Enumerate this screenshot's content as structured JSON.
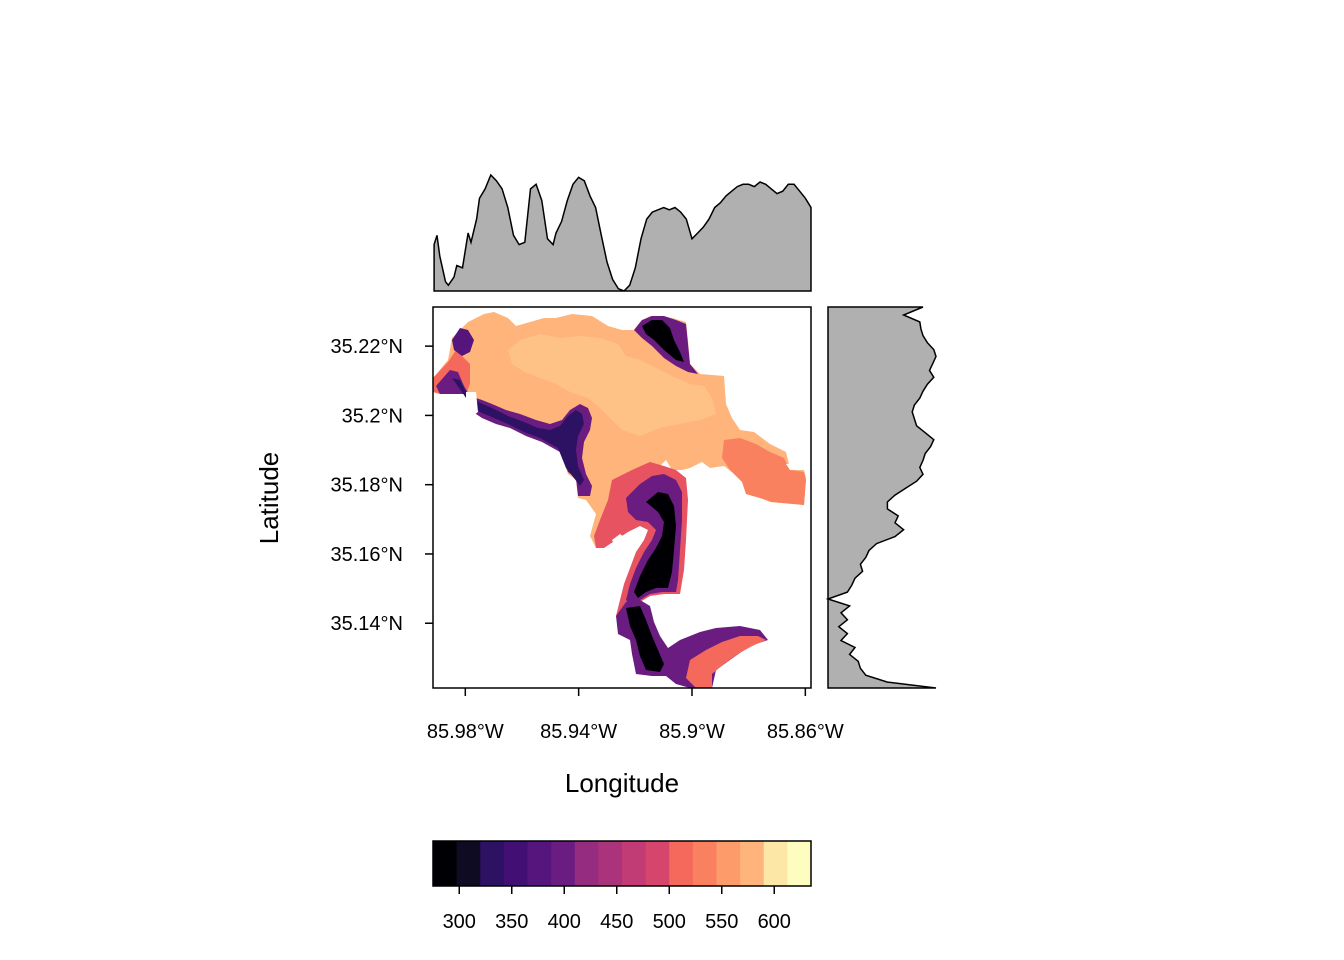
{
  "chart_data": {
    "type": "heatmap",
    "title": "",
    "xlabel": "Longitude",
    "ylabel": "Latitude",
    "x_ticks": [
      "85.98°W",
      "85.94°W",
      "85.9°W",
      "85.86°W"
    ],
    "y_ticks": [
      "35.22°N",
      "35.2°N",
      "35.18°N",
      "35.16°N",
      "35.14°N"
    ],
    "x_tick_values": [
      -85.98,
      -85.94,
      -85.9,
      -85.86
    ],
    "y_tick_values": [
      35.22,
      35.2,
      35.18,
      35.16,
      35.14
    ],
    "xlim": [
      -85.9914,
      -85.858
    ],
    "ylim": [
      35.1213,
      35.2313
    ],
    "colorbar": {
      "ticks": [
        "300",
        "350",
        "400",
        "450",
        "500",
        "550",
        "600"
      ],
      "tick_values": [
        300,
        350,
        400,
        450,
        500,
        550,
        600
      ],
      "range": [
        275,
        635
      ],
      "colors": [
        "#000004",
        "#0f0b22",
        "#1c1044",
        "#2d1163",
        "#420f75",
        "#56147d",
        "#6a1c81",
        "#7f2482",
        "#952c80",
        "#ab337c",
        "#c13b75",
        "#d6456c",
        "#e85362",
        "#f4695c",
        "#fa815f",
        "#fd9b6b",
        "#feb47b",
        "#fecd8f",
        "#fce7a7",
        "#fcfdbf"
      ]
    },
    "marginal_top": {
      "description_type": "area",
      "x": [
        -85.991,
        -85.99,
        -85.989,
        -85.987,
        -85.986,
        -85.984,
        -85.983,
        -85.981,
        -85.98,
        -85.979,
        -85.978,
        -85.976,
        -85.975,
        -85.973,
        -85.971,
        -85.969,
        -85.967,
        -85.965,
        -85.963,
        -85.961,
        -85.959,
        -85.957,
        -85.955,
        -85.953,
        -85.951,
        -85.949,
        -85.948,
        -85.946,
        -85.944,
        -85.942,
        -85.94,
        -85.938,
        -85.936,
        -85.934,
        -85.932,
        -85.93,
        -85.928,
        -85.926,
        -85.924,
        -85.922,
        -85.92,
        -85.918,
        -85.916,
        -85.914,
        -85.912,
        -85.91,
        -85.908,
        -85.906,
        -85.904,
        -85.902,
        -85.9,
        -85.898,
        -85.896,
        -85.894,
        -85.892,
        -85.89,
        -85.888,
        -85.886,
        -85.884,
        -85.882,
        -85.88,
        -85.878,
        -85.876,
        -85.874,
        -85.872,
        -85.87,
        -85.868,
        -85.866,
        -85.864,
        -85.862,
        -85.86,
        -85.858
      ],
      "y": [
        0.4,
        0.48,
        0.3,
        0.08,
        0.05,
        0.12,
        0.22,
        0.2,
        0.35,
        0.5,
        0.42,
        0.62,
        0.8,
        0.88,
        1.0,
        0.95,
        0.88,
        0.72,
        0.48,
        0.4,
        0.42,
        0.88,
        0.92,
        0.78,
        0.45,
        0.4,
        0.5,
        0.6,
        0.78,
        0.92,
        0.98,
        0.95,
        0.82,
        0.72,
        0.48,
        0.25,
        0.1,
        0.02,
        0.0,
        0.05,
        0.2,
        0.45,
        0.62,
        0.68,
        0.7,
        0.72,
        0.7,
        0.72,
        0.68,
        0.62,
        0.45,
        0.5,
        0.55,
        0.62,
        0.72,
        0.76,
        0.82,
        0.86,
        0.9,
        0.92,
        0.92,
        0.9,
        0.94,
        0.92,
        0.88,
        0.84,
        0.86,
        0.92,
        0.92,
        0.86,
        0.8,
        0.72
      ]
    },
    "marginal_right": {
      "description_type": "area",
      "y": [
        35.2313,
        35.229,
        35.227,
        35.225,
        35.223,
        35.221,
        35.219,
        35.217,
        35.215,
        35.213,
        35.211,
        35.209,
        35.207,
        35.205,
        35.203,
        35.201,
        35.199,
        35.197,
        35.195,
        35.193,
        35.191,
        35.189,
        35.187,
        35.185,
        35.183,
        35.181,
        35.179,
        35.177,
        35.175,
        35.173,
        35.171,
        35.169,
        35.167,
        35.165,
        35.163,
        35.161,
        35.159,
        35.157,
        35.155,
        35.153,
        35.151,
        35.149,
        35.147,
        35.145,
        35.143,
        35.141,
        35.139,
        35.137,
        35.135,
        35.133,
        35.131,
        35.129,
        35.127,
        35.125,
        35.123,
        35.1213
      ],
      "x": [
        0.88,
        0.7,
        0.85,
        0.86,
        0.88,
        0.92,
        0.98,
        1.0,
        0.97,
        0.94,
        0.98,
        0.92,
        0.88,
        0.85,
        0.8,
        0.78,
        0.8,
        0.82,
        0.9,
        0.98,
        0.95,
        0.9,
        0.88,
        0.85,
        0.88,
        0.82,
        0.72,
        0.62,
        0.55,
        0.55,
        0.65,
        0.62,
        0.7,
        0.62,
        0.45,
        0.38,
        0.35,
        0.3,
        0.32,
        0.25,
        0.22,
        0.18,
        0.0,
        0.2,
        0.12,
        0.18,
        0.1,
        0.18,
        0.12,
        0.25,
        0.2,
        0.28,
        0.3,
        0.35,
        0.55,
        1.0
      ]
    }
  }
}
